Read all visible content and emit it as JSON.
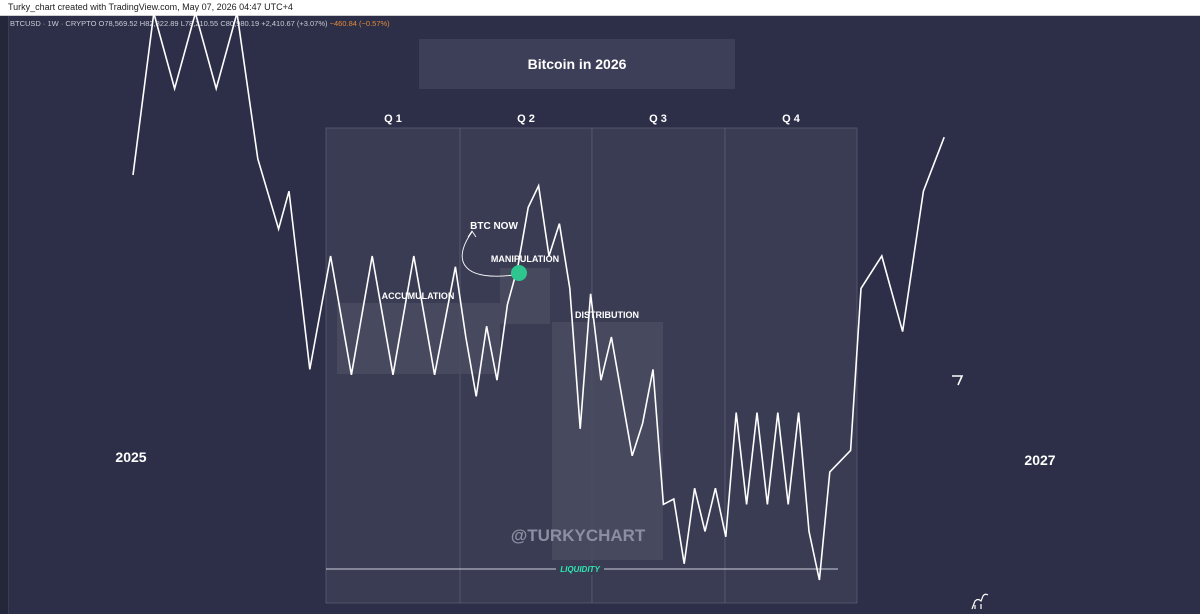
{
  "window": {
    "title": "Turky_chart created with TradingView.com, May 07, 2026 04:47 UTC+4"
  },
  "legend": {
    "symbol": "BTCUSD · 1W · CRYPTO",
    "open": "O78,569.52",
    "high": "H82,822.89",
    "low": "L78,210.55",
    "close": "C80,980.19",
    "change": "+2,410.67 (+3.07%)",
    "change_neg": "−460.84 (−0.57%)"
  },
  "colors": {
    "background": "#2d2f48",
    "line": "#ffffff",
    "highlight_dot": "#2fc58e",
    "liquidity_label": "#2fe6b0",
    "zone_fill": "#4a4c62"
  },
  "chart_data": {
    "type": "line",
    "title": "Bitcoin in 2026",
    "xlabel": "",
    "ylabel": "",
    "quarters": [
      "Q 1",
      "Q 2",
      "Q 3",
      "Q 4"
    ],
    "phases": [
      "ACCUMULATION",
      "MANIPULATION",
      "DISTRIBUTION"
    ],
    "annotations": {
      "now": "BTC NOW",
      "liquidity": "LIQUIDITY",
      "start_year": "2025",
      "end_year": "2027",
      "watermark": "@TURKYCHART"
    },
    "note": "schematic price path, no numeric axis printed",
    "path": [
      [
        0,
        55
      ],
      [
        1,
        85
      ],
      [
        2,
        71
      ],
      [
        3,
        85
      ],
      [
        4,
        71
      ],
      [
        5,
        85
      ],
      [
        6,
        58
      ],
      [
        7,
        45
      ],
      [
        7.5,
        52
      ],
      [
        8.5,
        19
      ],
      [
        9.5,
        40
      ],
      [
        10.5,
        18
      ],
      [
        11.5,
        40
      ],
      [
        12.5,
        18
      ],
      [
        13.5,
        40
      ],
      [
        14.5,
        18
      ],
      [
        15.5,
        38
      ],
      [
        16,
        25
      ],
      [
        16.5,
        14
      ],
      [
        17,
        27
      ],
      [
        17.5,
        17
      ],
      [
        18,
        31
      ],
      [
        18.5,
        38
      ],
      [
        19,
        49
      ],
      [
        19.5,
        53
      ],
      [
        20,
        40
      ],
      [
        20.5,
        46
      ],
      [
        21,
        34
      ],
      [
        21.5,
        8
      ],
      [
        22,
        33
      ],
      [
        22.5,
        17
      ],
      [
        23,
        25
      ],
      [
        24,
        3
      ],
      [
        24.5,
        9
      ],
      [
        25,
        19
      ],
      [
        25.5,
        -6
      ],
      [
        26,
        -5
      ],
      [
        26.5,
        -17
      ],
      [
        27,
        -3
      ],
      [
        27.5,
        -11
      ],
      [
        28,
        -3
      ],
      [
        28.5,
        -12
      ],
      [
        29,
        11
      ],
      [
        29.5,
        -6
      ],
      [
        30,
        11
      ],
      [
        30.5,
        -6
      ],
      [
        31,
        11
      ],
      [
        31.5,
        -6
      ],
      [
        32,
        11
      ],
      [
        32.5,
        -11
      ],
      [
        33,
        -20
      ],
      [
        33.5,
        0
      ],
      [
        34,
        2
      ],
      [
        34.5,
        4
      ],
      [
        35,
        34
      ],
      [
        36,
        40
      ],
      [
        37,
        26
      ],
      [
        38,
        52
      ],
      [
        39,
        62
      ]
    ]
  }
}
